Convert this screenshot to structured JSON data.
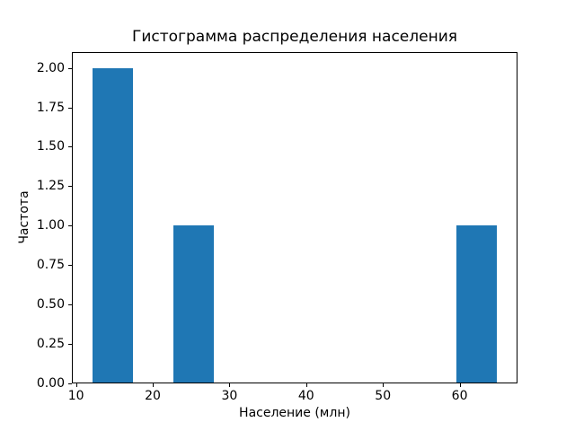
{
  "chart_data": {
    "type": "bar",
    "subtype": "histogram",
    "title": "Гистограмма распределения населения",
    "xlabel": "Население (млн)",
    "ylabel": "Частота",
    "bar_color": "#1f77b4",
    "axis_color": "#000000",
    "background_color": "#ffffff",
    "grid": false,
    "legend": null,
    "xlim": [
      9.46,
      67.54
    ],
    "ylim": [
      0,
      2.1
    ],
    "x_ticks": [
      10,
      20,
      30,
      40,
      50,
      60
    ],
    "x_tick_labels": [
      "10",
      "20",
      "30",
      "40",
      "50",
      "60"
    ],
    "y_ticks": [
      0,
      0.25,
      0.5,
      0.75,
      1.0,
      1.25,
      1.5,
      1.75,
      2.0
    ],
    "y_tick_labels": [
      "0.00",
      "0.25",
      "0.50",
      "0.75",
      "1.00",
      "1.25",
      "1.50",
      "1.75",
      "2.00"
    ],
    "bars": [
      {
        "x0": 12.1,
        "x1": 17.38,
        "value": 2
      },
      {
        "x0": 22.66,
        "x1": 27.94,
        "value": 1
      },
      {
        "x0": 59.62,
        "x1": 64.9,
        "value": 1
      }
    ]
  }
}
